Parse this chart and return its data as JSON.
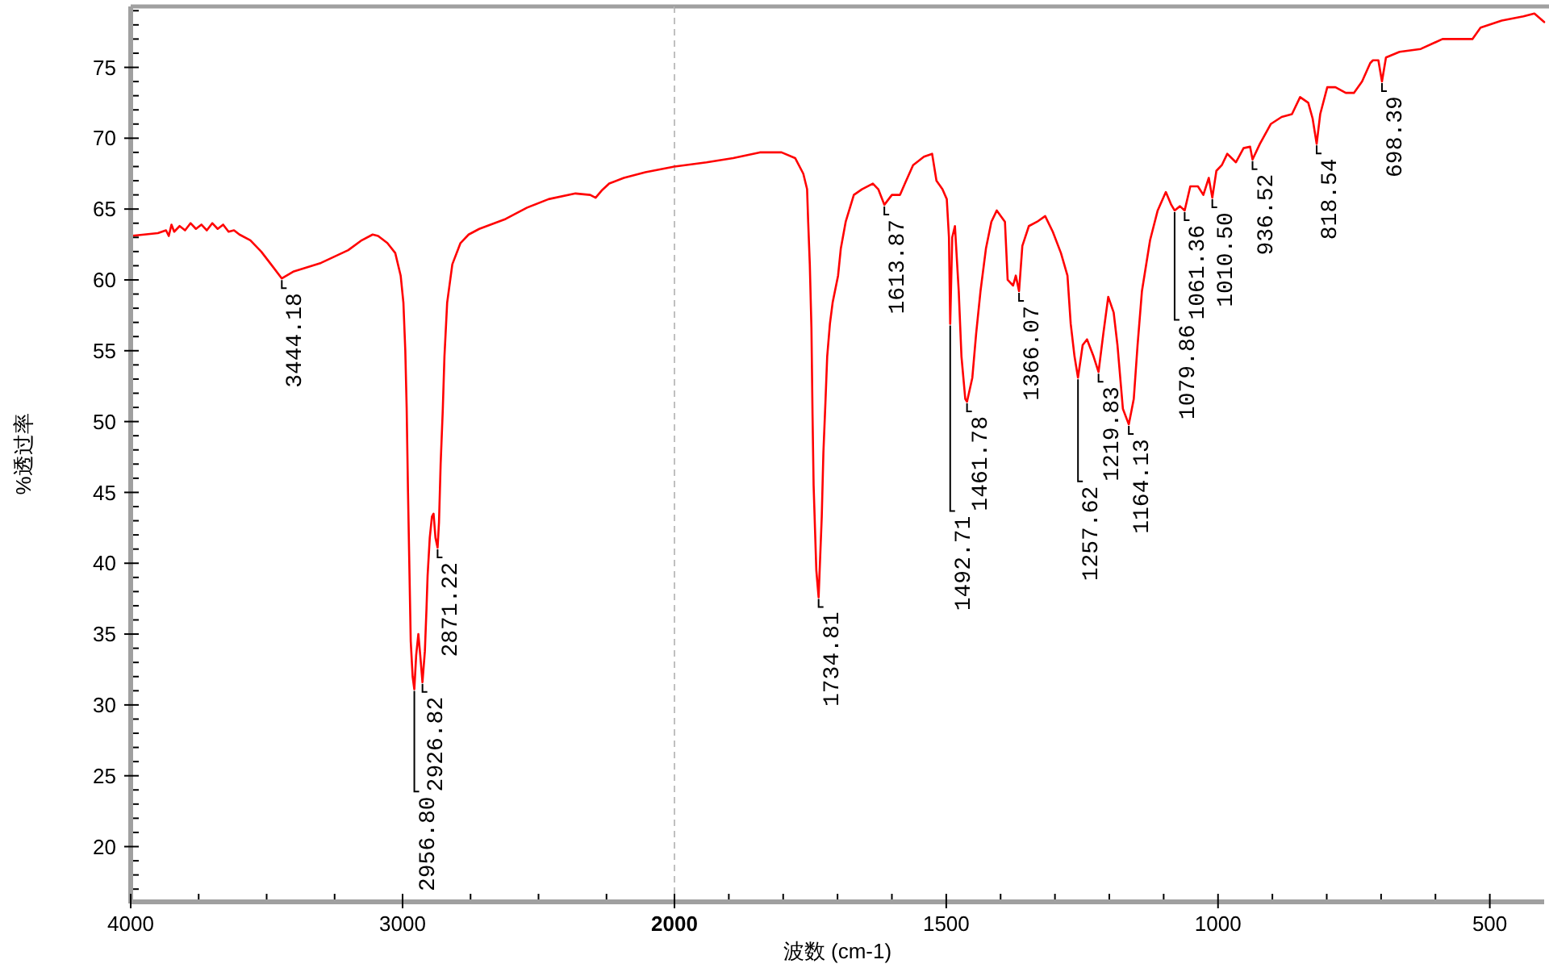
{
  "chart_data": [
    {
      "type": "line",
      "ylabel": "%透过率",
      "color": "#ff0000",
      "x": [
        4000,
        3950,
        3900,
        3870,
        3860,
        3850,
        3840,
        3820,
        3800,
        3780,
        3760,
        3740,
        3720,
        3700,
        3680,
        3660,
        3640,
        3620,
        3600,
        3560,
        3520,
        3480,
        3444.18,
        3400,
        3300,
        3200,
        3150,
        3110,
        3090,
        3056,
        3027,
        3007,
        2997,
        2990,
        2985,
        2980,
        2970,
        2963,
        2956.8,
        2950,
        2942,
        2935,
        2926.82,
        2918,
        2912,
        2908,
        2900,
        2892,
        2886,
        2879,
        2871.22,
        2866,
        2860,
        2852,
        2846,
        2836,
        2817,
        2787,
        2757,
        2718,
        2621,
        2542,
        2463,
        2364,
        2310,
        2290,
        2268,
        2240,
        2186,
        2107,
        2000
      ],
      "values": [
        63.1,
        63.2,
        63.3,
        63.5,
        63.1,
        63.9,
        63.4,
        63.8,
        63.5,
        64.0,
        63.6,
        63.9,
        63.5,
        64.0,
        63.6,
        63.9,
        63.4,
        63.5,
        63.2,
        62.8,
        62.0,
        61.0,
        60.1,
        60.6,
        61.2,
        62.1,
        62.8,
        63.2,
        63.1,
        62.6,
        61.9,
        60.3,
        58.4,
        55.0,
        51.0,
        45.0,
        34.5,
        32.0,
        31.1,
        33.5,
        35.0,
        33.5,
        31.6,
        33.8,
        36.8,
        39.1,
        41.8,
        43.3,
        43.5,
        41.8,
        41.1,
        42.9,
        47.0,
        50.9,
        54.6,
        58.4,
        61.1,
        62.6,
        63.2,
        63.6,
        64.3,
        65.1,
        65.7,
        66.1,
        66.0,
        65.8,
        66.3,
        66.8,
        67.2,
        67.6,
        68.0
      ],
      "xlim": [
        4000,
        2000
      ],
      "xticks": [
        4000,
        {
          "value": 3750,
          "label": null
        },
        {
          "value": 3500,
          "label": null
        },
        {
          "value": 3250,
          "label": null
        },
        3000,
        {
          "value": 2750,
          "label": null
        },
        {
          "value": 2500,
          "label": null
        },
        {
          "value": 2250,
          "label": null
        }
      ],
      "ylim": [
        16.1,
        79.3
      ],
      "yticks": [
        {
          "value": 17,
          "label": null
        },
        {
          "value": 18,
          "label": null
        },
        {
          "value": 19,
          "label": null
        },
        20,
        {
          "value": 21,
          "label": null
        },
        {
          "value": 22,
          "label": null
        },
        {
          "value": 23,
          "label": null
        },
        {
          "value": 24,
          "label": null
        },
        25,
        {
          "value": 26,
          "label": null
        },
        {
          "value": 27,
          "label": null
        },
        {
          "value": 28,
          "label": null
        },
        {
          "value": 29,
          "label": null
        },
        30,
        {
          "value": 31,
          "label": null
        },
        {
          "value": 32,
          "label": null
        },
        {
          "value": 33,
          "label": null
        },
        {
          "value": 34,
          "label": null
        },
        35,
        {
          "value": 36,
          "label": null
        },
        {
          "value": 37,
          "label": null
        },
        {
          "value": 38,
          "label": null
        },
        {
          "value": 39,
          "label": null
        },
        40,
        {
          "value": 41,
          "label": null
        },
        {
          "value": 42,
          "label": null
        },
        {
          "value": 43,
          "label": null
        },
        {
          "value": 44,
          "label": null
        },
        45,
        {
          "value": 46,
          "label": null
        },
        {
          "value": 47,
          "label": null
        },
        {
          "value": 48,
          "label": null
        },
        {
          "value": 49,
          "label": null
        },
        50,
        {
          "value": 51,
          "label": null
        },
        {
          "value": 52,
          "label": null
        },
        {
          "value": 53,
          "label": null
        },
        {
          "value": 54,
          "label": null
        },
        55,
        {
          "value": 56,
          "label": null
        },
        {
          "value": 57,
          "label": null
        },
        {
          "value": 58,
          "label": null
        },
        {
          "value": 59,
          "label": null
        },
        60,
        {
          "value": 61,
          "label": null
        },
        {
          "value": 62,
          "label": null
        },
        {
          "value": 63,
          "label": null
        },
        {
          "value": 64,
          "label": null
        },
        65,
        {
          "value": 66,
          "label": null
        },
        {
          "value": 67,
          "label": null
        },
        {
          "value": 68,
          "label": null
        },
        {
          "value": 69,
          "label": null
        },
        70,
        {
          "value": 71,
          "label": null
        },
        {
          "value": 72,
          "label": null
        },
        {
          "value": 73,
          "label": null
        },
        {
          "value": 74,
          "label": null
        },
        75,
        {
          "value": 76,
          "label": null
        },
        {
          "value": 77,
          "label": null
        },
        {
          "value": 78,
          "label": null
        },
        {
          "value": 79,
          "label": null
        }
      ],
      "annotations": [
        {
          "text": "3444.18",
          "x": 3444.18,
          "y": 60.1
        },
        {
          "text": "2956.80",
          "x": 2956.8,
          "y": 31.1
        },
        {
          "text": "2926.82",
          "x": 2926.82,
          "y": 31.6
        },
        {
          "text": "2871.22",
          "x": 2871.22,
          "y": 41.1
        }
      ]
    },
    {
      "type": "line",
      "xlabel": "波数 (cm-1)",
      "color": "#ff0000",
      "x": [
        2000,
        1941,
        1892,
        1843,
        1803,
        1778,
        1763,
        1756,
        1754,
        1751,
        1748,
        1746,
        1744,
        1739,
        1734.81,
        1729,
        1726,
        1722,
        1719,
        1714,
        1709,
        1699,
        1694,
        1685,
        1670,
        1655,
        1635,
        1625,
        1613.87,
        1600,
        1585,
        1576,
        1561,
        1541,
        1526,
        1518,
        1507,
        1499,
        1495,
        1492.71,
        1489,
        1484,
        1477,
        1472,
        1465,
        1461.78,
        1452,
        1445,
        1437,
        1427,
        1417,
        1407,
        1392,
        1387,
        1377,
        1372,
        1366.07,
        1360,
        1348,
        1333,
        1318,
        1304,
        1289,
        1277,
        1271,
        1264,
        1257.62,
        1249,
        1241,
        1229,
        1219.83,
        1211,
        1202,
        1192,
        1185,
        1175,
        1164.13,
        1155,
        1148,
        1140,
        1125,
        1111,
        1096,
        1086,
        1079.86,
        1070,
        1061.36,
        1051,
        1037,
        1027,
        1017,
        1010.5,
        1003,
        993,
        983,
        967,
        953,
        941,
        936.52,
        923,
        903,
        883,
        864,
        849,
        834,
        826,
        818.54,
        812,
        799,
        784,
        765,
        750,
        735,
        720,
        715,
        705,
        698.39,
        691,
        666,
        627,
        587,
        557,
        532,
        517,
        478,
        438,
        418,
        400
      ],
      "values": [
        68.0,
        68.3,
        68.6,
        69.0,
        69.0,
        68.6,
        67.5,
        66.4,
        64.1,
        61.1,
        56.6,
        50.5,
        45.5,
        39.5,
        37.6,
        43.3,
        47.8,
        51.6,
        54.6,
        56.9,
        58.4,
        60.3,
        62.2,
        64.1,
        66.0,
        66.4,
        66.8,
        66.4,
        65.3,
        66.0,
        66.0,
        66.8,
        68.1,
        68.7,
        68.9,
        67.0,
        66.4,
        65.7,
        63.0,
        56.9,
        63.0,
        63.8,
        59.2,
        54.6,
        51.6,
        51.4,
        53.1,
        56.2,
        59.2,
        62.2,
        64.1,
        64.9,
        64.1,
        60.0,
        59.6,
        60.3,
        59.2,
        62.4,
        63.8,
        64.1,
        64.5,
        63.4,
        61.9,
        60.3,
        56.9,
        54.6,
        53.1,
        55.4,
        55.8,
        54.6,
        53.5,
        56.2,
        58.8,
        57.7,
        55.4,
        50.9,
        49.8,
        51.6,
        55.4,
        59.2,
        62.8,
        64.9,
        66.2,
        65.3,
        64.9,
        65.2,
        64.9,
        66.6,
        66.6,
        66.0,
        67.2,
        65.8,
        67.7,
        68.1,
        68.9,
        68.3,
        69.3,
        69.4,
        68.5,
        69.6,
        71.0,
        71.5,
        71.7,
        72.9,
        72.5,
        71.4,
        69.6,
        71.7,
        73.6,
        73.6,
        73.2,
        73.2,
        74.0,
        75.3,
        75.5,
        75.5,
        74.0,
        75.7,
        76.1,
        76.3,
        77.0,
        77.0,
        77.0,
        77.8,
        78.3,
        78.6,
        78.8,
        78.2
      ],
      "xlim": [
        2000,
        400
      ],
      "xticks": [
        2000,
        {
          "value": 1900,
          "label": null
        },
        {
          "value": 1800,
          "label": null
        },
        {
          "value": 1700,
          "label": null
        },
        {
          "value": 1600,
          "label": null
        },
        1500,
        {
          "value": 1400,
          "label": null
        },
        {
          "value": 1300,
          "label": null
        },
        {
          "value": 1200,
          "label": null
        },
        {
          "value": 1100,
          "label": null
        },
        1000,
        {
          "value": 900,
          "label": null
        },
        {
          "value": 800,
          "label": null
        },
        {
          "value": 700,
          "label": null
        },
        {
          "value": 600,
          "label": null
        },
        500
      ],
      "ylim": [
        16.1,
        79.3
      ],
      "tick_labels": "x",
      "ref_lines": [
        {
          "axis": "x",
          "value": 2000,
          "color": "#c0c0c0",
          "line_style": "dashed"
        }
      ],
      "annotations": [
        {
          "text": "1734.81",
          "x": 1734.81,
          "y": 37.6
        },
        {
          "text": "1613.87",
          "x": 1613.87,
          "y": 65.3
        },
        {
          "text": "1492.71",
          "x": 1492.71,
          "y": 56.9
        },
        {
          "text": "1461.78",
          "x": 1461.78,
          "y": 51.4
        },
        {
          "text": "1366.07",
          "x": 1366.07,
          "y": 59.2
        },
        {
          "text": "1257.62",
          "x": 1257.62,
          "y": 53.1
        },
        {
          "text": "1219.83",
          "x": 1219.83,
          "y": 53.5
        },
        {
          "text": "1164.13",
          "x": 1164.13,
          "y": 49.8
        },
        {
          "text": "1079.86",
          "x": 1079.86,
          "y": 64.9
        },
        {
          "text": "1061.36",
          "x": 1061.36,
          "y": 64.9
        },
        {
          "text": "1010.50",
          "x": 1010.5,
          "y": 65.8
        },
        {
          "text": "936.52",
          "x": 936.52,
          "y": 68.5
        },
        {
          "text": "818.54",
          "x": 818.54,
          "y": 69.6
        },
        {
          "text": "698.39",
          "x": 698.39,
          "y": 74.0
        }
      ]
    }
  ]
}
